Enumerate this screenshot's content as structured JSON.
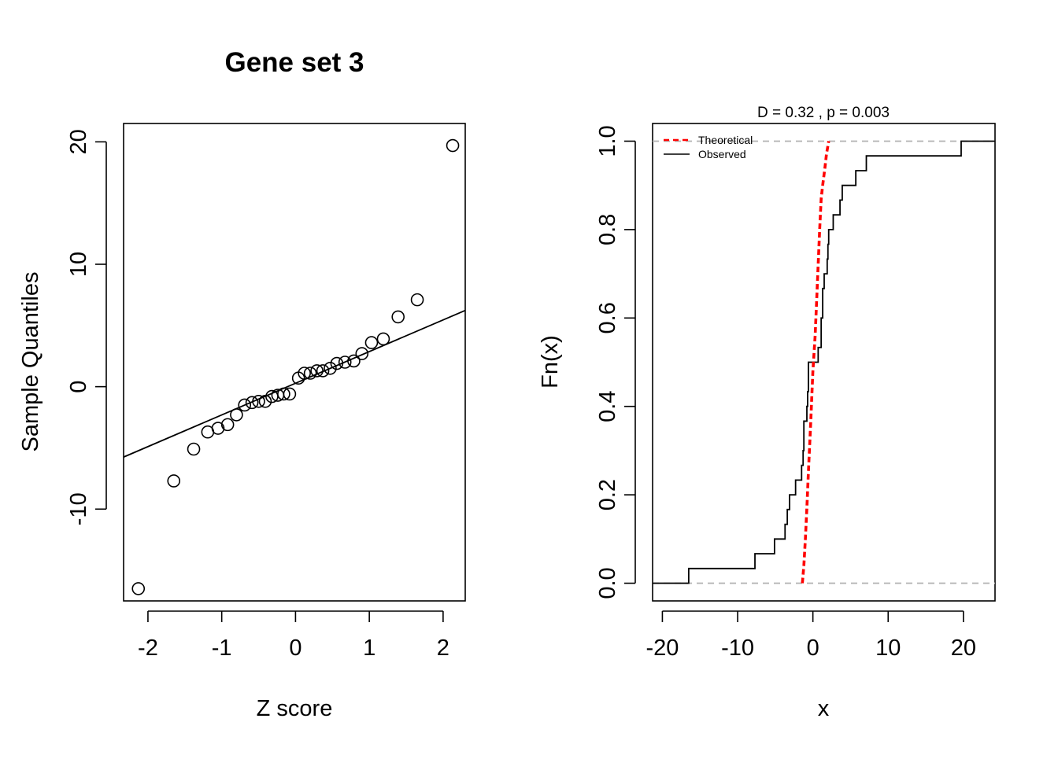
{
  "chart_data": [
    {
      "type": "scatter",
      "title": "Gene set 3",
      "xlabel": "Z score",
      "ylabel": "Sample Quantiles",
      "xlim": [
        -2.33,
        2.3
      ],
      "ylim": [
        -17.5,
        21.5
      ],
      "xticks": [
        "-2",
        "-1",
        "0",
        "1",
        "2"
      ],
      "xtick_values": [
        -2,
        -1,
        0,
        1,
        2
      ],
      "yticks": [
        "-10",
        "0",
        "10",
        "20"
      ],
      "ytick_values": [
        -10,
        0,
        10,
        20
      ],
      "points": {
        "x": [
          -2.13,
          -1.65,
          -1.38,
          -1.19,
          -1.05,
          -0.92,
          -0.8,
          -0.69,
          -0.59,
          -0.5,
          -0.41,
          -0.32,
          -0.24,
          -0.16,
          -0.08,
          0.04,
          0.12,
          0.2,
          0.29,
          0.37,
          0.47,
          0.56,
          0.67,
          0.79,
          0.9,
          1.03,
          1.19,
          1.39,
          1.65,
          2.13
        ],
        "y": [
          -16.5,
          -7.7,
          -5.1,
          -3.7,
          -3.4,
          -3.1,
          -2.3,
          -1.5,
          -1.3,
          -1.2,
          -1.2,
          -0.8,
          -0.7,
          -0.6,
          -0.6,
          0.7,
          1.1,
          1.1,
          1.3,
          1.3,
          1.5,
          1.9,
          2.0,
          2.1,
          2.7,
          3.6,
          3.9,
          5.7,
          7.1,
          19.7
        ]
      },
      "reference_line": {
        "x": [
          -2.33,
          2.3
        ],
        "y": [
          -5.75,
          6.23
        ]
      }
    },
    {
      "type": "line",
      "title": "D = 0.32 , p = 0.003",
      "xlabel": "x",
      "ylabel": "Fn(x)",
      "xlim": [
        -21.3,
        24.2
      ],
      "ylim": [
        -0.04,
        1.04
      ],
      "xticks": [
        "-20",
        "-10",
        "0",
        "10",
        "20"
      ],
      "xtick_values": [
        -20,
        -10,
        0,
        10,
        20
      ],
      "yticks": [
        "0.0",
        "0.2",
        "0.4",
        "0.6",
        "0.8",
        "1.0"
      ],
      "ytick_values": [
        0,
        0.2,
        0.4,
        0.6,
        0.8,
        1.0
      ],
      "hlines": [
        0,
        1
      ],
      "legend": {
        "position": "top-left",
        "entries": [
          {
            "label": "Theoretical",
            "color": "#ff0000",
            "style": "dashed"
          },
          {
            "label": "Observed",
            "color": "#000000",
            "style": "solid"
          }
        ]
      },
      "series": [
        {
          "name": "Theoretical",
          "color": "#ff0000",
          "style": "dashed",
          "x": [
            -1.4,
            -1.2,
            -1.0,
            -0.8,
            -0.6,
            -0.3,
            0.0,
            0.3,
            0.6,
            0.9,
            1.1,
            1.3,
            1.6,
            1.8,
            2.1
          ],
          "y": [
            0.0,
            0.04,
            0.1,
            0.17,
            0.25,
            0.36,
            0.48,
            0.56,
            0.68,
            0.8,
            0.87,
            0.9,
            0.94,
            0.97,
            1.0
          ]
        },
        {
          "name": "Observed",
          "color": "#000000",
          "style": "step",
          "x": [
            -16.5,
            -7.7,
            -5.1,
            -3.7,
            -3.4,
            -3.1,
            -2.3,
            -1.5,
            -1.3,
            -1.2,
            -0.8,
            -0.7,
            -0.6,
            0.7,
            1.1,
            1.3,
            1.5,
            1.9,
            2.0,
            2.1,
            2.7,
            3.6,
            3.9,
            5.7,
            7.1,
            19.7
          ],
          "y": [
            0.0333,
            0.0667,
            0.1,
            0.1333,
            0.1667,
            0.2,
            0.2333,
            0.2667,
            0.3,
            0.3667,
            0.4,
            0.4333,
            0.5,
            0.5333,
            0.6,
            0.6667,
            0.7,
            0.7333,
            0.7667,
            0.8,
            0.8333,
            0.8667,
            0.9,
            0.9333,
            0.9667,
            1.0
          ]
        }
      ]
    }
  ]
}
